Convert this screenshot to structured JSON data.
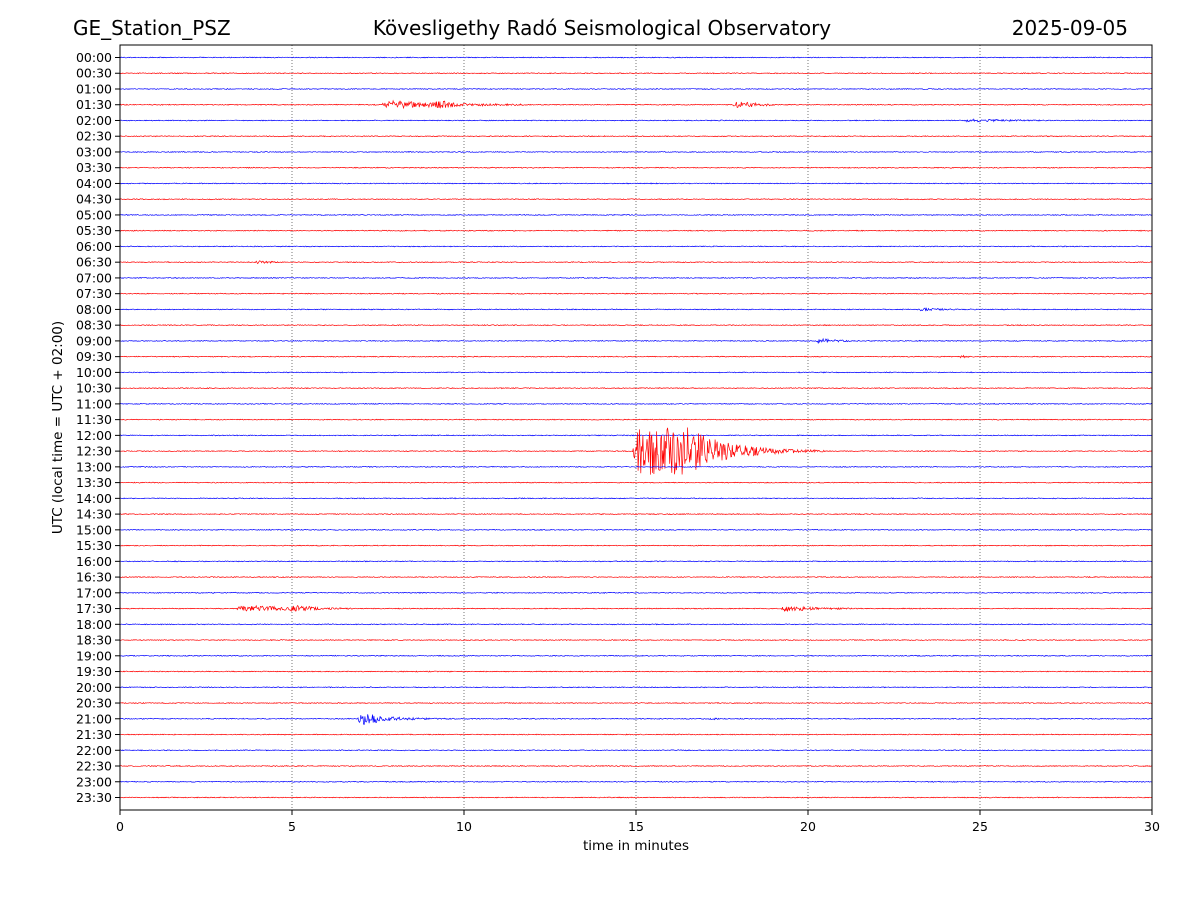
{
  "header": {
    "station": "GE_Station_PSZ",
    "title": "Kövesligethy Radó Seismological Observatory",
    "date": "2025-09-05"
  },
  "chart_data": {
    "type": "line",
    "title": "Kövesligethy Radó Seismological Observatory",
    "xlabel": "time in minutes",
    "ylabel": "UTC (local time = UTC + 02:00)",
    "xlim": [
      0,
      30
    ],
    "x_ticks": [
      0,
      5,
      10,
      15,
      20,
      25,
      30
    ],
    "x_tick_labels": [
      "0",
      "5",
      "10",
      "15",
      "20",
      "25",
      "30"
    ],
    "grid": "vertical dotted lines at x ticks",
    "row_labels": [
      "00:00",
      "00:30",
      "01:00",
      "01:30",
      "02:00",
      "02:30",
      "03:00",
      "03:30",
      "04:00",
      "04:30",
      "05:00",
      "05:30",
      "06:00",
      "06:30",
      "07:00",
      "07:30",
      "08:00",
      "08:30",
      "09:00",
      "09:30",
      "10:00",
      "10:30",
      "11:00",
      "11:30",
      "12:00",
      "12:30",
      "13:00",
      "13:30",
      "14:00",
      "14:30",
      "15:00",
      "15:30",
      "16:00",
      "16:30",
      "17:00",
      "17:30",
      "18:00",
      "18:30",
      "19:00",
      "19:30",
      "20:00",
      "20:30",
      "21:00",
      "21:30",
      "22:00",
      "22:30",
      "23:00",
      "23:30"
    ],
    "row_colors": [
      "#0000ff",
      "#ff0000"
    ],
    "noise_amplitude": 0.06,
    "events": [
      {
        "row": "01:30",
        "start": 7.6,
        "end": 11.8,
        "peak_time": 7.8,
        "amplitude": 0.45,
        "decay": 1.6,
        "secondary_peak": 9.3,
        "secondary_amp": 0.4
      },
      {
        "row": "01:30",
        "start": 17.8,
        "end": 19.0,
        "peak_time": 18.1,
        "amplitude": 0.35,
        "decay": 0.5
      },
      {
        "row": "02:00",
        "start": 24.5,
        "end": 27.0,
        "peak_time": 25.0,
        "amplitude": 0.12,
        "decay": 1.0
      },
      {
        "row": "06:30",
        "start": 3.9,
        "end": 4.6,
        "peak_time": 4.0,
        "amplitude": 0.15,
        "decay": 0.4
      },
      {
        "row": "08:00",
        "start": 23.2,
        "end": 24.3,
        "peak_time": 23.4,
        "amplitude": 0.15,
        "decay": 0.5
      },
      {
        "row": "09:00",
        "start": 20.2,
        "end": 21.3,
        "peak_time": 20.3,
        "amplitude": 0.3,
        "decay": 0.4
      },
      {
        "row": "09:30",
        "start": 24.4,
        "end": 24.7,
        "peak_time": 24.5,
        "amplitude": 0.25,
        "decay": 0.1
      },
      {
        "row": "12:30",
        "start": 14.9,
        "end": 20.5,
        "peak_time": 16.5,
        "amplitude": 2.7,
        "decay": 1.1,
        "secondary_peak": 15.1,
        "secondary_amp": 1.5
      },
      {
        "row": "17:30",
        "start": 3.4,
        "end": 6.8,
        "peak_time": 3.6,
        "amplitude": 0.35,
        "decay": 1.4,
        "secondary_peak": 5.2,
        "secondary_amp": 0.3
      },
      {
        "row": "17:30",
        "start": 19.2,
        "end": 21.2,
        "peak_time": 19.4,
        "amplitude": 0.3,
        "decay": 0.8
      },
      {
        "row": "21:00",
        "start": 6.9,
        "end": 11.5,
        "peak_time": 7.0,
        "amplitude": 0.75,
        "decay": 0.7
      },
      {
        "row": "21:00",
        "start": 17.1,
        "end": 17.4,
        "peak_time": 17.2,
        "amplitude": 0.15,
        "decay": 0.1
      }
    ]
  }
}
